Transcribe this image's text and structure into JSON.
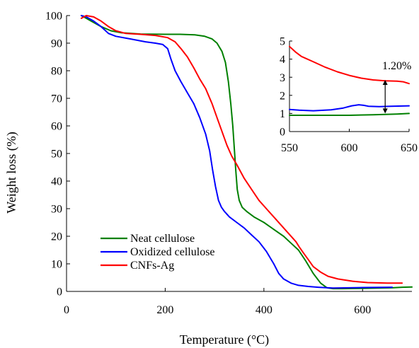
{
  "chart_data": [
    {
      "type": "line",
      "xlabel": "Temperature (°C)",
      "ylabel": "Weight loss (%)",
      "xlim": [
        0,
        700
      ],
      "ylim": [
        0,
        100
      ],
      "xticks": [
        0,
        200,
        400,
        600
      ],
      "yticks": [
        0,
        10,
        20,
        30,
        40,
        50,
        60,
        70,
        80,
        90,
        100
      ],
      "grid": false,
      "legend_position": "bottom-left",
      "series": [
        {
          "name": "Neat cellulose",
          "color": "#008000",
          "points": [
            [
              30,
              100
            ],
            [
              40,
              99
            ],
            [
              55,
              97.5
            ],
            [
              70,
              96
            ],
            [
              90,
              94.5
            ],
            [
              110,
              93.8
            ],
            [
              150,
              93.3
            ],
            [
              200,
              93.2
            ],
            [
              230,
              93.2
            ],
            [
              260,
              93
            ],
            [
              280,
              92.5
            ],
            [
              295,
              91.5
            ],
            [
              305,
              90
            ],
            [
              315,
              87
            ],
            [
              322,
              83
            ],
            [
              328,
              76
            ],
            [
              333,
              68
            ],
            [
              337,
              60
            ],
            [
              340,
              52
            ],
            [
              343,
              44
            ],
            [
              346,
              37
            ],
            [
              350,
              33
            ],
            [
              356,
              30.5
            ],
            [
              365,
              29
            ],
            [
              380,
              27
            ],
            [
              400,
              25
            ],
            [
              420,
              22.5
            ],
            [
              440,
              20
            ],
            [
              455,
              17.5
            ],
            [
              470,
              15
            ],
            [
              485,
              11
            ],
            [
              500,
              6.5
            ],
            [
              515,
              3
            ],
            [
              528,
              1.3
            ],
            [
              540,
              1
            ],
            [
              560,
              1
            ],
            [
              600,
              1.1
            ],
            [
              660,
              1.3
            ],
            [
              680,
              1.5
            ],
            [
              700,
              1.6
            ]
          ]
        },
        {
          "name": "Oxidized cellulose",
          "color": "#0000ff",
          "points": [
            [
              30,
              100
            ],
            [
              40,
              99.5
            ],
            [
              55,
              98
            ],
            [
              70,
              96
            ],
            [
              85,
              93.5
            ],
            [
              100,
              92.5
            ],
            [
              130,
              91.5
            ],
            [
              160,
              90.5
            ],
            [
              180,
              90
            ],
            [
              195,
              89.5
            ],
            [
              205,
              88
            ],
            [
              212,
              84
            ],
            [
              220,
              80
            ],
            [
              232,
              76
            ],
            [
              245,
              72
            ],
            [
              258,
              68
            ],
            [
              270,
              63
            ],
            [
              282,
              57
            ],
            [
              290,
              51
            ],
            [
              296,
              44
            ],
            [
              302,
              38
            ],
            [
              308,
              33
            ],
            [
              314,
              30.5
            ],
            [
              320,
              29
            ],
            [
              330,
              27
            ],
            [
              345,
              25
            ],
            [
              360,
              23
            ],
            [
              375,
              20.5
            ],
            [
              390,
              18
            ],
            [
              405,
              14.5
            ],
            [
              420,
              10
            ],
            [
              430,
              6.5
            ],
            [
              440,
              4.5
            ],
            [
              455,
              3
            ],
            [
              470,
              2.2
            ],
            [
              490,
              1.8
            ],
            [
              510,
              1.5
            ],
            [
              540,
              1.2
            ],
            [
              600,
              1.4
            ],
            [
              660,
              1.5
            ]
          ]
        },
        {
          "name": "CNFs-Ag",
          "color": "#ff0000",
          "points": [
            [
              30,
              99
            ],
            [
              40,
              100
            ],
            [
              55,
              99.5
            ],
            [
              70,
              98
            ],
            [
              85,
              96
            ],
            [
              100,
              94.5
            ],
            [
              120,
              93.5
            ],
            [
              150,
              93.2
            ],
            [
              180,
              92.8
            ],
            [
              205,
              92
            ],
            [
              220,
              90.5
            ],
            [
              232,
              88
            ],
            [
              245,
              85
            ],
            [
              258,
              81
            ],
            [
              270,
              77
            ],
            [
              282,
              73.5
            ],
            [
              295,
              68
            ],
            [
              305,
              63
            ],
            [
              315,
              58
            ],
            [
              325,
              53
            ],
            [
              335,
              49
            ],
            [
              345,
              46
            ],
            [
              360,
              41
            ],
            [
              375,
              37
            ],
            [
              390,
              33
            ],
            [
              405,
              30
            ],
            [
              420,
              27
            ],
            [
              435,
              24
            ],
            [
              450,
              21
            ],
            [
              465,
              18
            ],
            [
              472,
              16
            ],
            [
              480,
              14
            ],
            [
              490,
              11.5
            ],
            [
              500,
              9
            ],
            [
              515,
              7
            ],
            [
              530,
              5.5
            ],
            [
              550,
              4.5
            ],
            [
              580,
              3.7
            ],
            [
              610,
              3.2
            ],
            [
              650,
              3
            ],
            [
              680,
              3
            ]
          ]
        }
      ]
    },
    {
      "type": "line",
      "inset": true,
      "xlim": [
        550,
        650
      ],
      "ylim": [
        0,
        5
      ],
      "xticks": [
        550,
        600,
        650
      ],
      "yticks": [
        0,
        1,
        2,
        3,
        4,
        5
      ],
      "grid": false,
      "annotation": {
        "text": "1.20%",
        "x": 630,
        "y_from": 1.0,
        "y_to": 2.85
      },
      "series": [
        {
          "name": "Neat cellulose",
          "color": "#008000",
          "points": [
            [
              550,
              0.9
            ],
            [
              570,
              0.9
            ],
            [
              600,
              0.9
            ],
            [
              620,
              0.93
            ],
            [
              640,
              0.97
            ],
            [
              650,
              1.0
            ]
          ]
        },
        {
          "name": "Oxidized cellulose",
          "color": "#0000ff",
          "points": [
            [
              550,
              1.22
            ],
            [
              558,
              1.18
            ],
            [
              570,
              1.15
            ],
            [
              585,
              1.2
            ],
            [
              595,
              1.3
            ],
            [
              602,
              1.42
            ],
            [
              608,
              1.48
            ],
            [
              612,
              1.45
            ],
            [
              616,
              1.4
            ],
            [
              625,
              1.38
            ],
            [
              635,
              1.4
            ],
            [
              650,
              1.42
            ]
          ]
        },
        {
          "name": "CNFs-Ag",
          "color": "#ff0000",
          "points": [
            [
              550,
              4.7
            ],
            [
              555,
              4.4
            ],
            [
              560,
              4.15
            ],
            [
              570,
              3.85
            ],
            [
              580,
              3.55
            ],
            [
              590,
              3.3
            ],
            [
              600,
              3.1
            ],
            [
              610,
              2.95
            ],
            [
              620,
              2.85
            ],
            [
              630,
              2.8
            ],
            [
              640,
              2.78
            ],
            [
              645,
              2.75
            ],
            [
              650,
              2.65
            ]
          ]
        }
      ]
    }
  ]
}
